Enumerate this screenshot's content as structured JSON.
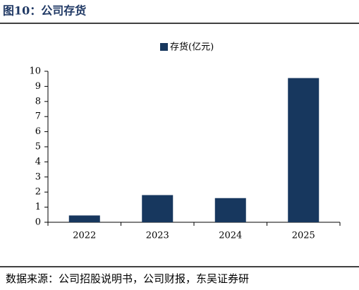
{
  "chart_data": {
    "type": "bar",
    "title": "图10：公司存货",
    "source": "数据来源：公司招股说明书，公司财报，东吴证券研",
    "categories": [
      "2022",
      "2023",
      "2024",
      "2025"
    ],
    "series": [
      {
        "name": "存货(亿元)",
        "color": "#17375e",
        "values": [
          0.45,
          1.8,
          1.6,
          9.55
        ]
      }
    ],
    "ylim": [
      0,
      10
    ],
    "yticks": [
      0,
      1,
      2,
      3,
      4,
      5,
      6,
      7,
      8,
      9,
      10
    ],
    "grid": false,
    "legend": "top"
  }
}
